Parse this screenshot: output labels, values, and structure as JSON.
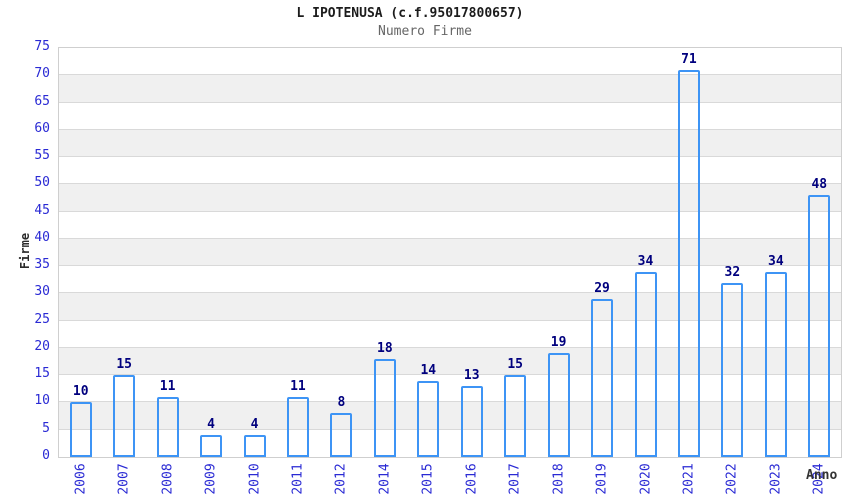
{
  "header": {
    "title": "L IPOTENUSA (c.f.95017800657)",
    "subtitle": "Numero Firme"
  },
  "axes": {
    "y_title": "Firme",
    "x_title": "Anno"
  },
  "chart_data": {
    "type": "bar",
    "title": "L IPOTENUSA (c.f.95017800657)",
    "subtitle": "Numero Firme",
    "xlabel": "Anno",
    "ylabel": "Firme",
    "categories": [
      "2006",
      "2007",
      "2008",
      "2009",
      "2010",
      "2011",
      "2012",
      "2014",
      "2015",
      "2016",
      "2017",
      "2018",
      "2019",
      "2020",
      "2021",
      "2022",
      "2023",
      "2024"
    ],
    "values": [
      10,
      15,
      11,
      4,
      4,
      11,
      8,
      18,
      14,
      13,
      15,
      19,
      29,
      34,
      71,
      32,
      34,
      48
    ],
    "ylim": [
      0,
      75
    ],
    "ytick_step": 5,
    "grid": true,
    "legend_position": "none",
    "bands_alternating": true
  },
  "colors": {
    "bar_border": "#3d94f5",
    "bar_dark": "#131374",
    "bar_light": "#9aa0d8",
    "value_label": "#00007e",
    "axis_tick_blue": "#2a2ad4",
    "grid_line": "#d9d9d9",
    "band_gray": "#f0f0f0",
    "band_white": "#ffffff",
    "plot_border": "#cfcfcf",
    "title_color": "#1c1c1c",
    "subtitle_color": "#666666"
  }
}
